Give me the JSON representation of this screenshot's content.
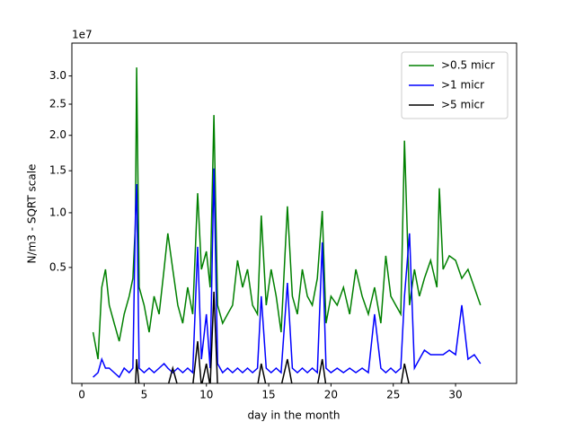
{
  "chart_data": {
    "type": "line",
    "yscale": "sqrt",
    "xlabel": "day in the month",
    "ylabel": "N/m3 - SQRT scale",
    "y_offset_label": "1e7",
    "x": [
      0.9,
      1.3,
      1.6,
      1.9,
      2.2,
      2.6,
      3.0,
      3.4,
      3.8,
      4.1,
      4.3,
      4.4,
      4.6,
      5.0,
      5.4,
      5.8,
      6.2,
      6.6,
      6.9,
      7.3,
      7.7,
      8.1,
      8.5,
      8.9,
      9.3,
      9.6,
      10.0,
      10.3,
      10.6,
      10.9,
      11.3,
      11.7,
      12.1,
      12.5,
      12.9,
      13.3,
      13.7,
      14.1,
      14.4,
      14.8,
      15.2,
      15.6,
      16.0,
      16.5,
      16.9,
      17.3,
      17.7,
      18.1,
      18.5,
      18.9,
      19.3,
      19.6,
      20.0,
      20.5,
      21.0,
      21.5,
      22.0,
      22.5,
      23.0,
      23.5,
      24.0,
      24.4,
      24.8,
      25.2,
      25.6,
      25.9,
      26.3,
      26.7,
      27.1,
      27.5,
      28.0,
      28.5,
      28.7,
      29.0,
      29.5,
      30.0,
      30.5,
      31.0,
      31.5,
      32.0
    ],
    "series": [
      {
        "name": ">0.5 micr",
        "color": "#008000",
        "values": [
          1300000,
          468000,
          3610000,
          4860000,
          2550000,
          1670000,
          976000,
          2090000,
          3060000,
          4210000,
          8790000,
          31600000,
          3610000,
          2550000,
          1300000,
          3060000,
          2090000,
          4860000,
          7910000,
          4860000,
          2550000,
          1670000,
          3610000,
          2090000,
          12200000,
          4860000,
          6290000,
          3610000,
          23200000,
          2550000,
          1670000,
          2090000,
          2550000,
          5550000,
          3610000,
          4860000,
          2550000,
          2090000,
          9710000,
          2550000,
          4860000,
          3060000,
          1300000,
          10700000,
          3060000,
          2090000,
          4860000,
          3060000,
          2550000,
          4210000,
          10200000,
          1670000,
          3060000,
          2550000,
          3610000,
          2090000,
          4860000,
          3060000,
          2090000,
          3610000,
          1670000,
          5920000,
          3060000,
          2550000,
          2090000,
          19200000,
          2550000,
          4860000,
          3060000,
          4210000,
          5550000,
          3610000,
          12800000,
          4860000,
          5920000,
          5550000,
          4210000,
          4860000,
          3610000,
          2550000
        ]
      },
      {
        "name": ">1 micr",
        "color": "#0000ff",
        "values": [
          144000,
          208000,
          468000,
          283000,
          283000,
          208000,
          144000,
          283000,
          208000,
          283000,
          9520000,
          13300000,
          283000,
          208000,
          283000,
          208000,
          283000,
          370000,
          283000,
          208000,
          283000,
          208000,
          283000,
          208000,
          6680000,
          468000,
          2090000,
          283000,
          15300000,
          370000,
          208000,
          283000,
          208000,
          283000,
          208000,
          283000,
          208000,
          283000,
          3060000,
          283000,
          208000,
          283000,
          208000,
          3900000,
          283000,
          208000,
          283000,
          208000,
          283000,
          208000,
          7080000,
          283000,
          208000,
          283000,
          208000,
          283000,
          208000,
          283000,
          208000,
          2090000,
          283000,
          208000,
          283000,
          208000,
          283000,
          3060000,
          7910000,
          283000,
          468000,
          699000,
          578000,
          578000,
          578000,
          578000,
          699000,
          578000,
          2550000,
          468000,
          578000,
          370000
        ]
      },
      {
        "name": ">5 micr",
        "color": "#000000",
        "values": [
          50000,
          50000,
          50000,
          50000,
          50000,
          50000,
          50000,
          50000,
          50000,
          50000,
          50000,
          468000,
          50000,
          50000,
          50000,
          50000,
          50000,
          50000,
          50000,
          283000,
          50000,
          50000,
          50000,
          50000,
          976000,
          50000,
          370000,
          50000,
          3330000,
          50000,
          50000,
          50000,
          50000,
          50000,
          50000,
          50000,
          50000,
          50000,
          370000,
          50000,
          50000,
          50000,
          50000,
          468000,
          50000,
          50000,
          50000,
          50000,
          50000,
          50000,
          468000,
          50000,
          50000,
          50000,
          50000,
          50000,
          50000,
          50000,
          50000,
          50000,
          50000,
          50000,
          50000,
          50000,
          50000,
          370000,
          50000,
          50000,
          50000,
          50000,
          50000,
          50000,
          50000,
          50000,
          50000,
          50000,
          50000,
          50000,
          50000,
          50000
        ]
      }
    ],
    "xlim": [
      -0.8,
      34.9
    ],
    "xticks": [
      0,
      5,
      10,
      15,
      20,
      25,
      30
    ],
    "ylim": [
      75000,
      36400000
    ],
    "yticks": [
      {
        "value": 5000000,
        "label": "0.5"
      },
      {
        "value": 10000000,
        "label": "1.0"
      },
      {
        "value": 15000000,
        "label": "1.5"
      },
      {
        "value": 20000000,
        "label": "2.0"
      },
      {
        "value": 25000000,
        "label": "2.5"
      },
      {
        "value": 30000000,
        "label": "3.0"
      }
    ],
    "grid": false,
    "legend": "upper right"
  }
}
